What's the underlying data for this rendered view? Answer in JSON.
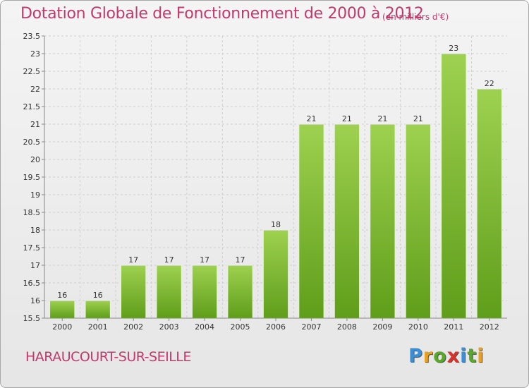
{
  "header": {
    "title": "Dotation Globale de Fonctionnement de 2000 à 2012",
    "unit": "(en milliers d'€)"
  },
  "footer": {
    "city": "HARAUCOURT-SUR-SEILLE",
    "logo": {
      "letters": [
        "P",
        "r",
        "o",
        "x",
        "i",
        "t",
        "i"
      ],
      "colors": [
        "#3a8fd6",
        "#e8a020",
        "#5aa82a",
        "#d8322a",
        "#3a8fd6",
        "#5aa82a",
        "#e8a020"
      ]
    }
  },
  "chart_data": {
    "type": "bar",
    "title": "Dotation Globale de Fonctionnement de 2000 à 2012",
    "xlabel": "",
    "ylabel": "",
    "categories": [
      "2000",
      "2001",
      "2002",
      "2003",
      "2004",
      "2005",
      "2006",
      "2007",
      "2008",
      "2009",
      "2010",
      "2011",
      "2012"
    ],
    "values": [
      16,
      16,
      17,
      17,
      17,
      17,
      18,
      21,
      21,
      21,
      21,
      23,
      22
    ],
    "value_labels": [
      "16",
      "16",
      "17",
      "17",
      "17",
      "17",
      "18",
      "21",
      "21",
      "21",
      "21",
      "23",
      "22"
    ],
    "ylim": [
      15.5,
      23.5
    ],
    "yticks": [
      15.5,
      16,
      16.5,
      17,
      17.5,
      18,
      18.5,
      19,
      19.5,
      20,
      20.5,
      21,
      21.5,
      22,
      22.5,
      23,
      23.5
    ],
    "ytick_labels": [
      "15.5",
      "16",
      "16.5",
      "17",
      "17.5",
      "18",
      "18.5",
      "19",
      "19.5",
      "20",
      "20.5",
      "21",
      "21.5",
      "22",
      "22.5",
      "23",
      "23.5"
    ],
    "grid": true,
    "bar_color_top": "#9ed150",
    "bar_color_bottom": "#5f9e1a"
  }
}
